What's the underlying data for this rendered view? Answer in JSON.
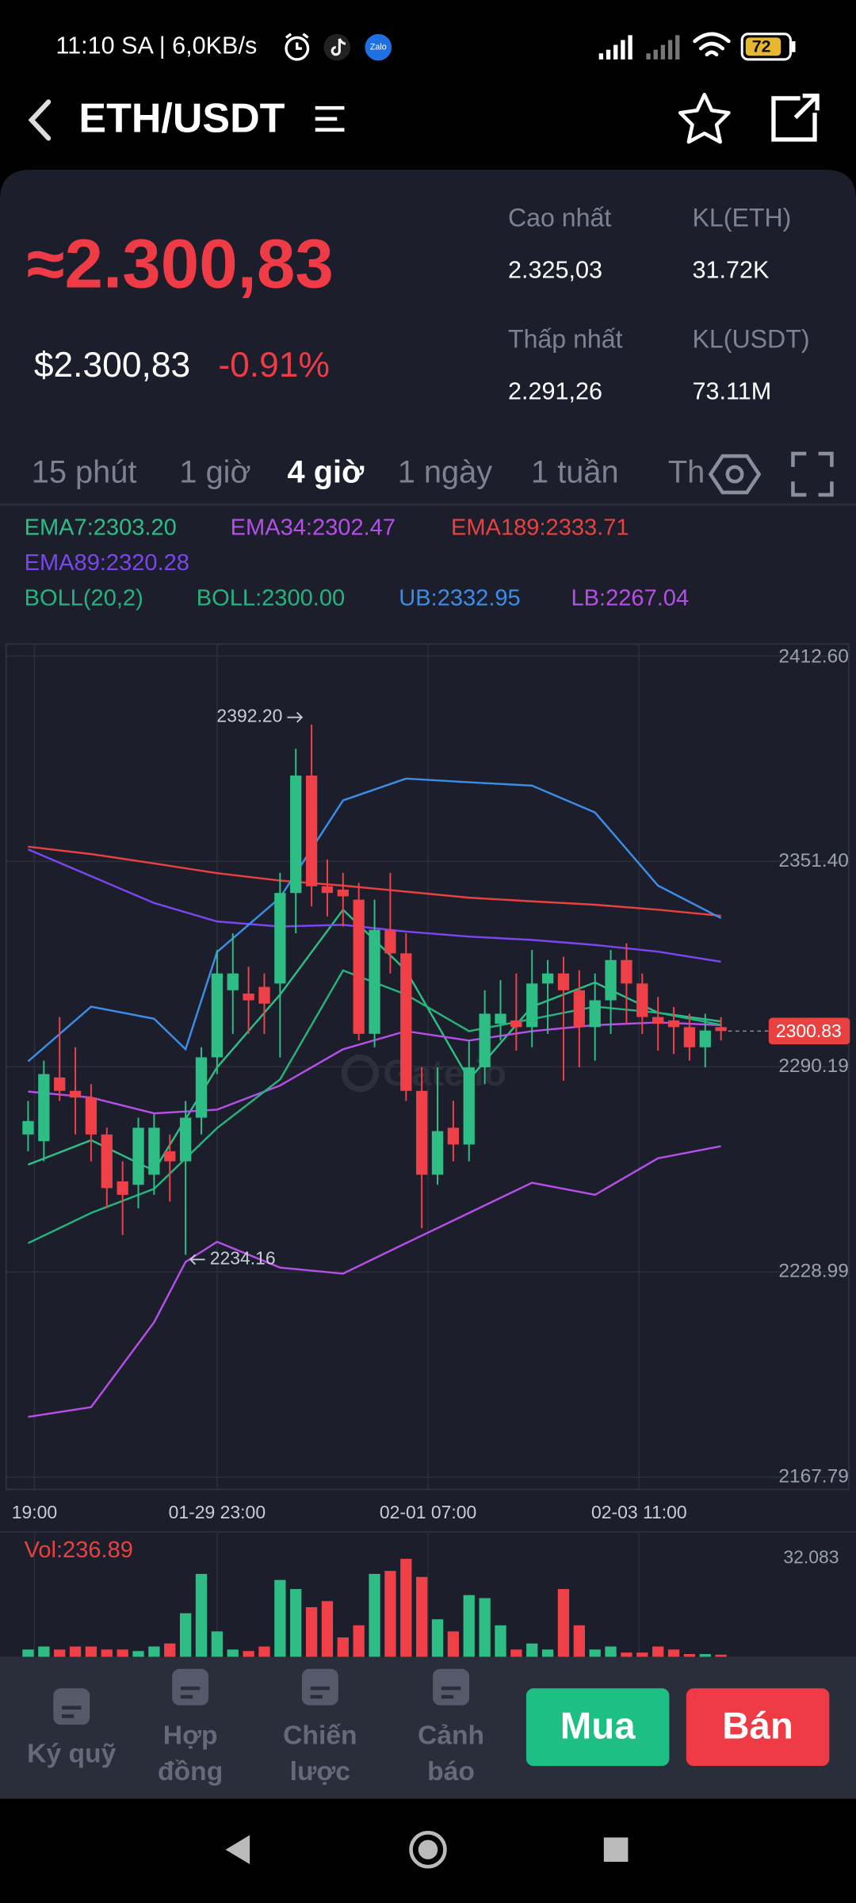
{
  "status_bar": {
    "time": "11:10 SA | 6,0KB/s",
    "zalo": "Zalo",
    "battery": "72"
  },
  "header": {
    "title": "ETH/USDT"
  },
  "ticker": {
    "price": "≈2.300,83",
    "usd_price": "$2.300,83",
    "change": "-0.91%",
    "stats": [
      {
        "label": "Cao nhất",
        "value": "2.325,03"
      },
      {
        "label": "KL(ETH)",
        "value": "31.72K"
      },
      {
        "label": "Thấp nhất",
        "value": "2.291,26"
      },
      {
        "label": "KL(USDT)",
        "value": "73.11M"
      }
    ]
  },
  "tabs": [
    "15 phút",
    "1 giờ",
    "4 giờ",
    "1 ngày",
    "1 tuần",
    "Th"
  ],
  "active_tab": 2,
  "chart_data": {
    "type": "candlestick",
    "up_color": "#2ebd85",
    "down_color": "#ef4048",
    "open": [
      2270,
      2268,
      2287,
      2283,
      2281,
      2270,
      2256,
      2255,
      2258,
      2265,
      2262,
      2275,
      2293,
      2313,
      2312,
      2314,
      2315,
      2342,
      2377,
      2344,
      2343,
      2340,
      2300,
      2331,
      2324,
      2283,
      2258,
      2272,
      2267,
      2290,
      2303,
      2304,
      2302,
      2315,
      2318,
      2313,
      2302,
      2310,
      2322,
      2315,
      2305,
      2304,
      2302,
      2296,
      2302
    ],
    "high": [
      2280,
      2292,
      2305,
      2296,
      2285,
      2272,
      2262,
      2275,
      2276,
      2270,
      2280,
      2296,
      2325,
      2330,
      2320,
      2318,
      2348,
      2385,
      2392.2,
      2352,
      2348,
      2345,
      2340,
      2348,
      2330,
      2290,
      2290,
      2280,
      2298,
      2313,
      2316,
      2318,
      2325,
      2322,
      2323,
      2319,
      2318,
      2325,
      2327,
      2318,
      2311,
      2308,
      2306,
      2306,
      2305
    ],
    "low": [
      2265,
      2262,
      2280,
      2270,
      2262,
      2248,
      2240,
      2248,
      2252,
      2250,
      2234.16,
      2270,
      2288,
      2300,
      2300,
      2300,
      2293,
      2330,
      2338,
      2335,
      2332,
      2298,
      2296,
      2318,
      2280,
      2242,
      2255,
      2262,
      2262,
      2285,
      2298,
      2295,
      2296,
      2300,
      2286,
      2290,
      2292,
      2300,
      2303,
      2300,
      2295,
      2294,
      2292,
      2290,
      2298
    ],
    "close": [
      2274,
      2288,
      2283,
      2281,
      2270,
      2254,
      2252,
      2272,
      2272,
      2262,
      2275,
      2293,
      2318,
      2318,
      2310,
      2309,
      2342,
      2377,
      2344,
      2342,
      2341,
      2300,
      2331,
      2324,
      2283,
      2258,
      2271,
      2267,
      2290,
      2306,
      2306,
      2302,
      2315,
      2318,
      2313,
      2302,
      2310,
      2322,
      2315,
      2305,
      2303,
      2302,
      2296,
      2301,
      2300.83
    ],
    "xlim": [
      -1.4,
      46.8
    ],
    "xticks": [
      {
        "value": 0.4,
        "label": "19:00"
      },
      {
        "value": 12,
        "label": "01-29 23:00"
      },
      {
        "value": 25.4,
        "label": "02-01 07:00"
      },
      {
        "value": 38.8,
        "label": "02-03 11:00"
      }
    ],
    "ylim": [
      2167.79,
      2412.6
    ],
    "yticks": [
      2167.79,
      2228.99,
      2290.19,
      {
        "value": 2351.4,
        "label": "2351.40"
      },
      {
        "value": 2412.6,
        "label": "2412.60"
      }
    ],
    "grid": true,
    "high_label": "2392.20",
    "low_label": "2234.16",
    "last_price": {
      "value": 2300.83,
      "label": "2300.83"
    },
    "watermark": "Gate.io",
    "boll_label": "BOLL(20,2)",
    "series": [
      {
        "name": "EMA7:2303.20",
        "color": "#2ebd85",
        "x": [
          0,
          4,
          8,
          12,
          16,
          20,
          24,
          28,
          32,
          36,
          40,
          44
        ],
        "values": [
          2261,
          2268.3,
          2259.2,
          2290,
          2311.7,
          2337,
          2318.9,
          2286.4,
          2308.1,
          2315.3,
          2306.3,
          2303.7
        ]
      },
      {
        "name": "EMA34:2302.47",
        "color": "#b64fe8",
        "x": [
          0,
          4,
          8,
          12,
          16,
          20,
          24,
          28,
          32,
          36,
          40,
          44
        ],
        "values": [
          2282.8,
          2281,
          2276.3,
          2277.4,
          2284.6,
          2295.4,
          2300.8,
          2298,
          2300.8,
          2302.6,
          2303.4,
          2302.6
        ]
      },
      {
        "name": "EMA189:2333.71",
        "color": "#e8413f",
        "x": [
          0,
          4,
          8,
          12,
          16,
          20,
          24,
          28,
          32,
          36,
          40,
          44
        ],
        "values": [
          2355.8,
          2353.6,
          2350.8,
          2347.9,
          2345.7,
          2344.2,
          2342.4,
          2340.6,
          2339.5,
          2338.5,
          2337,
          2335.2
        ]
      },
      {
        "name": "EMA89:2320.28",
        "color": "#7b45ef",
        "x": [
          0,
          4,
          8,
          12,
          16,
          20,
          24,
          28,
          32,
          36,
          40,
          44
        ],
        "values": [
          2355,
          2347,
          2339,
          2333.5,
          2332,
          2332.5,
          2330.5,
          2329,
          2328,
          2326.5,
          2324.5,
          2321.5
        ]
      },
      {
        "name": "BOLL:2300.00",
        "color": "#26b37d",
        "x": [
          0,
          4,
          8,
          12,
          16,
          20,
          24,
          28,
          32,
          36,
          40,
          44
        ],
        "values": [
          2237.6,
          2246.6,
          2253.8,
          2271.9,
          2286.4,
          2318.9,
          2311.7,
          2300.8,
          2304.4,
          2308.1,
          2306.3,
          2302.7
        ]
      },
      {
        "name": "UB:2332.95",
        "color": "#3c8de8",
        "x": [
          0,
          4,
          8,
          10,
          12,
          16,
          20,
          24,
          28,
          32,
          36,
          40,
          44
        ],
        "values": [
          2291.8,
          2308.1,
          2304.5,
          2295.4,
          2324.4,
          2340.6,
          2369.6,
          2376.1,
          2375,
          2374,
          2366,
          2344.2,
          2334.5
        ]
      },
      {
        "name": "LB:2267.04",
        "color": "#b64fe8",
        "x": [
          0,
          4,
          8,
          10,
          12,
          16,
          20,
          24,
          28,
          32,
          36,
          40,
          44
        ],
        "values": [
          2185.8,
          2188.7,
          2214,
          2232,
          2238,
          2230.3,
          2228.5,
          2237.6,
          2246.6,
          2255.6,
          2252,
          2262.9,
          2266.5
        ]
      }
    ],
    "volume": {
      "label": "Vol:236.89",
      "values": [
        2,
        3,
        2,
        3,
        3,
        2,
        2,
        1.5,
        3,
        4,
        14,
        27,
        8,
        2,
        1.5,
        3,
        25,
        22,
        16,
        18,
        6,
        10,
        27,
        28,
        32,
        26,
        12,
        8,
        20,
        19,
        10,
        2,
        4,
        2,
        22,
        10,
        2,
        3,
        1,
        1,
        3,
        2,
        0.5,
        0.5,
        0.3
      ],
      "ylim": [
        0,
        32.083
      ],
      "yticks": [
        32.083
      ]
    }
  },
  "toolbar": {
    "items": [
      [
        "Ký quỹ"
      ],
      [
        "Hợp",
        "đồng"
      ],
      [
        "Chiến",
        "lược"
      ],
      [
        "Cảnh",
        "báo"
      ]
    ],
    "buy": "Mua",
    "sell": "Bán"
  }
}
